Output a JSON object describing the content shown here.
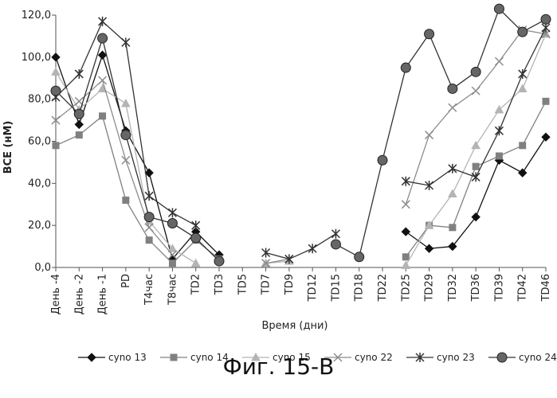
{
  "chart_data": {
    "type": "line",
    "xlabel": "Время (дни)",
    "ylabel": "BCE (нМ)",
    "ylim": [
      0,
      120
    ],
    "yticks": [
      "0,0",
      "20,0",
      "40,0",
      "60,0",
      "80,0",
      "100,0",
      "120,0"
    ],
    "categories": [
      "День -4",
      "День -2",
      "День -1",
      "PD",
      "T4час",
      "T8час",
      "TD2",
      "TD3",
      "TD5",
      "TD7",
      "TD9",
      "TD12",
      "TD15",
      "TD18",
      "TD22",
      "TD25",
      "TD29",
      "TD32",
      "TD36",
      "TD39",
      "TD42",
      "TD46"
    ],
    "grid": false,
    "legend_position": "bottom",
    "series": [
      {
        "name": "cyno 13",
        "marker": "diamond",
        "color": "#111111",
        "values": [
          100,
          68,
          101,
          65,
          45,
          4,
          17,
          6,
          null,
          null,
          null,
          null,
          null,
          null,
          null,
          17,
          9,
          10,
          24,
          51,
          45,
          62
        ]
      },
      {
        "name": "cyno 14",
        "marker": "square",
        "color": "#808080",
        "values": [
          58,
          63,
          72,
          32,
          13,
          2,
          13,
          4,
          null,
          null,
          null,
          null,
          null,
          null,
          null,
          5,
          20,
          19,
          48,
          53,
          58,
          79
        ]
      },
      {
        "name": "cyno 15",
        "marker": "triangle",
        "color": "#b4b4b4",
        "values": [
          93,
          75,
          85,
          78,
          22,
          9,
          2,
          null,
          null,
          2,
          3,
          null,
          null,
          null,
          null,
          1,
          20,
          35,
          58,
          75,
          85,
          111
        ]
      },
      {
        "name": "cyno 22",
        "marker": "x",
        "color": "#8c8c8c",
        "values": [
          70,
          79,
          89,
          51,
          19,
          6,
          null,
          null,
          null,
          2,
          4,
          null,
          null,
          null,
          null,
          30,
          63,
          76,
          84,
          98,
          113,
          111
        ]
      },
      {
        "name": "cyno 23",
        "marker": "star",
        "color": "#333333",
        "values": [
          81,
          92,
          117,
          107,
          34,
          26,
          20,
          null,
          null,
          7,
          4,
          9,
          16,
          null,
          null,
          41,
          39,
          47,
          43,
          65,
          92,
          114
        ]
      },
      {
        "name": "cyno 24",
        "marker": "circle",
        "color": "#333333",
        "values": [
          84,
          73,
          109,
          63,
          24,
          21,
          14,
          3,
          null,
          null,
          null,
          null,
          11,
          5,
          51,
          95,
          111,
          85,
          93,
          123,
          112,
          118
        ]
      }
    ]
  },
  "caption": "Фиг. 15-В"
}
